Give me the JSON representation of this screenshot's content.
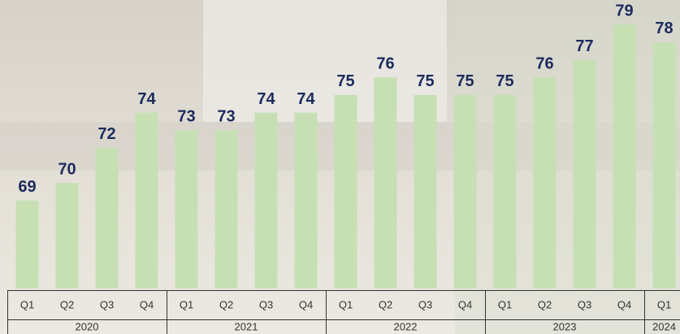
{
  "chart_data": {
    "type": "bar",
    "color": "#c6e0b4",
    "label_color": "#1c2b5e",
    "ylim": [
      64,
      80.4
    ],
    "groups": [
      {
        "label": "2020",
        "categories": [
          "Q1",
          "Q2",
          "Q3",
          "Q4"
        ],
        "values": [
          69,
          70,
          72,
          74
        ]
      },
      {
        "label": "2021",
        "categories": [
          "Q1",
          "Q2",
          "Q3",
          "Q4"
        ],
        "values": [
          73,
          73,
          74,
          74
        ]
      },
      {
        "label": "2022",
        "categories": [
          "Q1",
          "Q2",
          "Q3",
          "Q4"
        ],
        "values": [
          75,
          76,
          75,
          75
        ]
      },
      {
        "label": "2023",
        "categories": [
          "Q1",
          "Q2",
          "Q3",
          "Q4"
        ],
        "values": [
          75,
          76,
          77,
          79
        ]
      },
      {
        "label": "2024",
        "categories": [
          "Q1"
        ],
        "values": [
          78
        ]
      }
    ]
  }
}
